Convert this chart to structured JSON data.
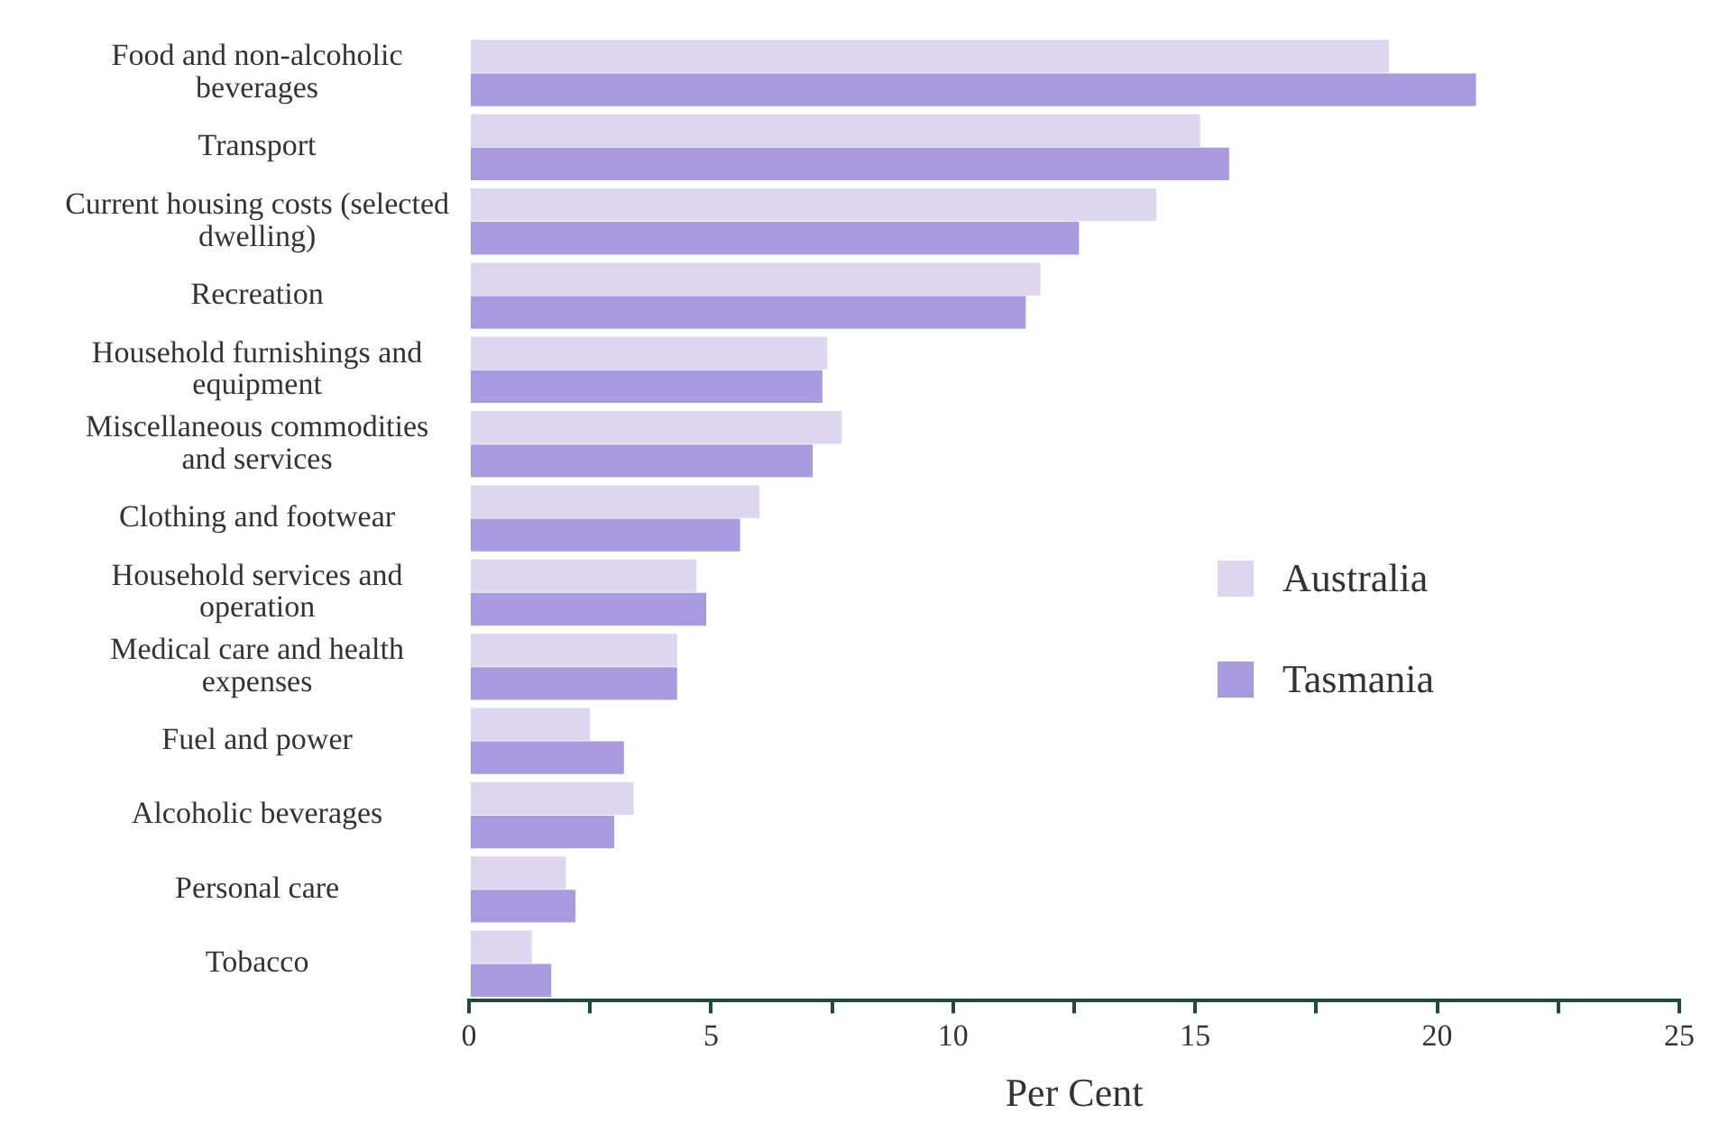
{
  "chart_data": {
    "type": "bar",
    "orientation": "horizontal",
    "xlabel": "Per Cent",
    "categories": [
      "Food and non-alcoholic beverages",
      "Transport",
      "Current housing costs (selected dwelling)",
      "Recreation",
      "Household furnishings and equipment",
      "Miscellaneous commodities and services",
      "Clothing and footwear",
      "Household services and operation",
      "Medical care and health expenses",
      "Fuel and power",
      "Alcoholic beverages",
      "Personal care",
      "Tobacco"
    ],
    "series": [
      {
        "name": "Australia",
        "color": "#ddd6f0",
        "values": [
          19.0,
          15.1,
          14.2,
          11.8,
          7.4,
          7.7,
          6.0,
          4.7,
          4.3,
          2.5,
          3.4,
          2.0,
          1.3
        ]
      },
      {
        "name": "Tasmania",
        "color": "#a99be0",
        "values": [
          20.8,
          15.7,
          12.6,
          11.5,
          7.3,
          7.1,
          5.6,
          4.9,
          4.3,
          3.2,
          3.0,
          2.2,
          1.7
        ]
      }
    ],
    "xlim": [
      0,
      25
    ],
    "xticks": [
      0,
      {
        "value": 2.5,
        "label": null
      },
      5,
      {
        "value": 7.5,
        "label": null
      },
      10,
      {
        "value": 12.5,
        "label": null
      },
      15,
      {
        "value": 17.5,
        "label": null
      },
      20,
      {
        "value": 22.5,
        "label": null
      },
      25
    ],
    "grid": false,
    "legend": "right"
  }
}
